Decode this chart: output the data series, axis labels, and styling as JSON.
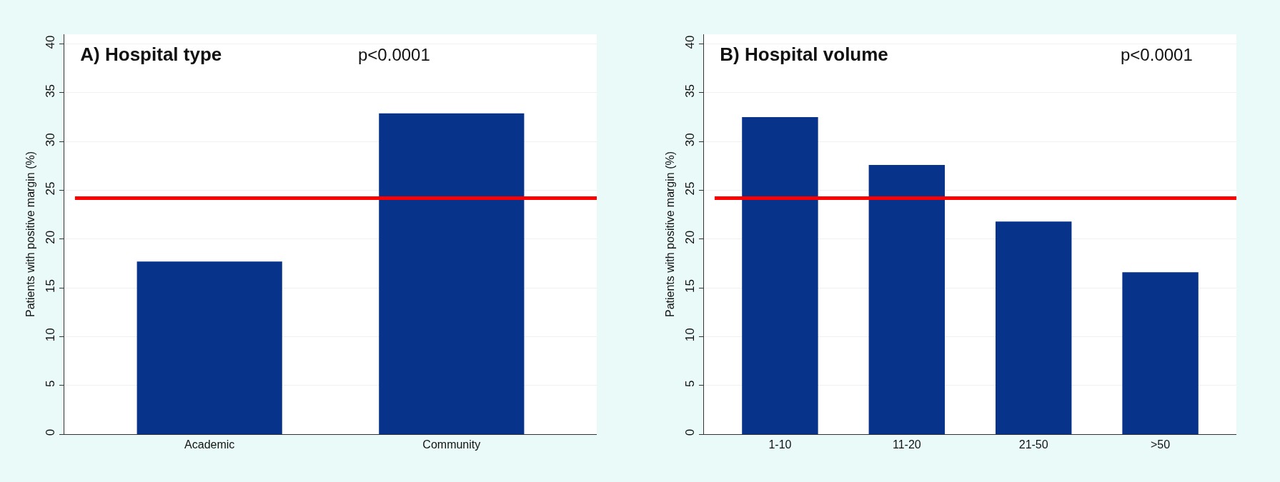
{
  "chart_data": [
    {
      "type": "bar",
      "title": "A) Hospital type",
      "ylabel": "Patients with positive margin (%)",
      "categories": [
        "Academic",
        "Community"
      ],
      "values": [
        17.7,
        32.9
      ],
      "color": "#08338a",
      "ylim": [
        0,
        41
      ],
      "yticks": [
        0,
        5,
        10,
        15,
        20,
        25,
        30,
        35,
        40
      ],
      "grid": "y",
      "annotations": [
        "p<0.0001"
      ],
      "ref_lines": [
        {
          "axis": "y",
          "value": 24.2,
          "color": "#ff0000"
        }
      ]
    },
    {
      "type": "bar",
      "title": "B) Hospital volume",
      "ylabel": "Patients with positive margin (%)",
      "categories": [
        "1-10",
        "11-20",
        "21-50",
        ">50"
      ],
      "values": [
        32.5,
        27.6,
        21.8,
        16.6
      ],
      "color": "#08338a",
      "ylim": [
        0,
        41
      ],
      "yticks": [
        0,
        5,
        10,
        15,
        20,
        25,
        30,
        35,
        40
      ],
      "grid": "y",
      "annotations": [
        "p<0.0001"
      ],
      "ref_lines": [
        {
          "axis": "y",
          "value": 24.2,
          "color": "#ff0000"
        }
      ]
    }
  ]
}
